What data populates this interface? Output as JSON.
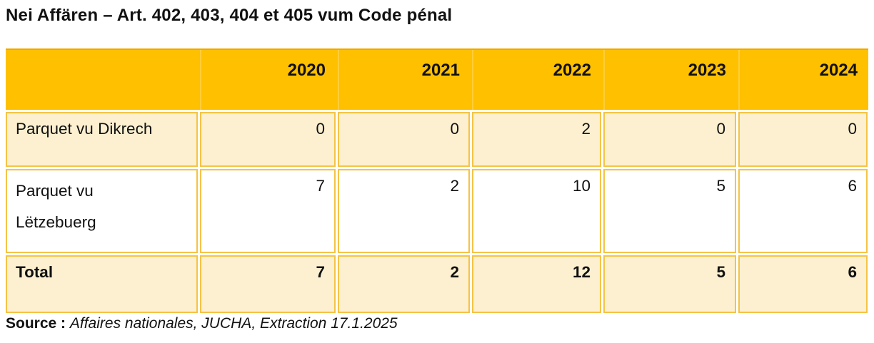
{
  "title": "Nei Affären – Art. 402, 403, 404 et 405 vum Code pénal",
  "colors": {
    "header_background": "#FFC000",
    "header_top_line": "#F0A800",
    "header_separator": "#FFCE39",
    "cell_border": "#F5C346",
    "cream_row_background": "#FCF0D0",
    "white_row_background": "#FFFFFF",
    "text": "#111111"
  },
  "table": {
    "columns": [
      "",
      "2020",
      "2021",
      "2022",
      "2023",
      "2024"
    ],
    "rows": [
      {
        "label": "Parquet vu Dikrech",
        "values": [
          "0",
          "0",
          "2",
          "0",
          "0"
        ]
      },
      {
        "label": "Parquet vu Lëtzebuerg",
        "values": [
          "7",
          "2",
          "10",
          "5",
          "6"
        ]
      },
      {
        "label": "Total",
        "values": [
          "7",
          "2",
          "12",
          "5",
          "6"
        ]
      }
    ]
  },
  "source": {
    "label": "Source :",
    "text": "Affaires nationales, JUCHA, Extraction 17.1.2025"
  },
  "chart_data": {
    "type": "table",
    "title": "Nei Affären – Art. 402, 403, 404 et 405 vum Code pénal",
    "categories": [
      "2020",
      "2021",
      "2022",
      "2023",
      "2024"
    ],
    "series": [
      {
        "name": "Parquet vu Dikrech",
        "values": [
          0,
          0,
          2,
          0,
          0
        ]
      },
      {
        "name": "Parquet vu Lëtzebuerg",
        "values": [
          7,
          2,
          10,
          5,
          6
        ]
      },
      {
        "name": "Total",
        "values": [
          7,
          2,
          12,
          5,
          6
        ]
      }
    ]
  }
}
